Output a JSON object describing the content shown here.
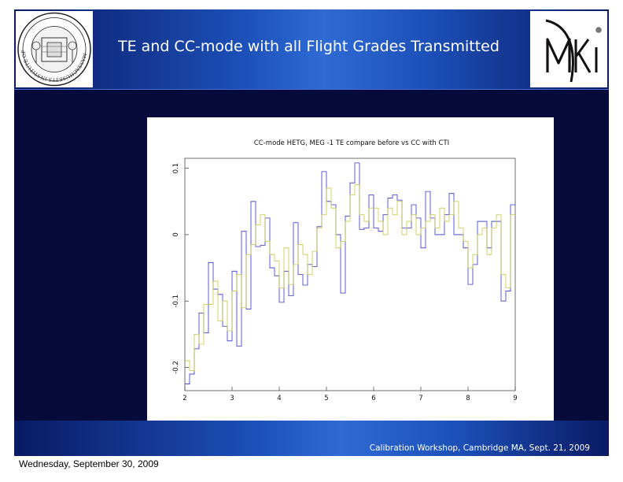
{
  "slide": {
    "title": "TE and CC-mode with all Flight Grades Transmitted",
    "footer": "Calibration Workshop, Cambridge MA, Sept. 21, 2009",
    "seal_text": "MASSACHUSETTS INSTITUTE OF TECHNOLOGY"
  },
  "page_footer_date": "Wednesday, September 30, 2009",
  "colors": {
    "slide_bg": "#070b3c",
    "header_mid": "#2e6bd3",
    "series_blue": "#3333cc",
    "series_yellow": "#c8c845"
  },
  "chart_data": {
    "type": "line",
    "step": true,
    "title": "CC-mode HETG, MEG -1 TE compare before vs CC with CTI",
    "xlabel": "",
    "ylabel": "",
    "xlim": [
      2,
      9
    ],
    "ylim": [
      -0.235,
      0.115
    ],
    "xticks": [
      2,
      3,
      4,
      5,
      6,
      7,
      8,
      9
    ],
    "xtick_labels": [
      "2",
      "3",
      "4",
      "5",
      "6",
      "7",
      "8",
      "9"
    ],
    "yticks": [
      -0.2,
      -0.1,
      0,
      0.1
    ],
    "ytick_labels": [
      "-0.2",
      "-0.1",
      "0",
      "0.1"
    ],
    "grid": false,
    "series": [
      {
        "x": [
          2.0,
          2.1,
          2.2,
          2.3,
          2.4,
          2.5,
          2.6,
          2.7,
          2.8,
          2.9,
          3.0,
          3.1,
          3.2,
          3.3,
          3.4,
          3.5,
          3.6,
          3.7,
          3.8,
          3.9,
          4.0,
          4.1,
          4.2,
          4.3,
          4.4,
          4.5,
          4.6,
          4.7,
          4.8,
          4.9,
          5.0,
          5.1,
          5.2,
          5.3,
          5.4,
          5.5,
          5.6,
          5.7,
          5.8,
          5.9,
          6.0,
          6.1,
          6.2,
          6.3,
          6.4,
          6.5,
          6.6,
          6.7,
          6.8,
          6.9,
          7.0,
          7.1,
          7.2,
          7.3,
          7.4,
          7.5,
          7.6,
          7.7,
          7.8,
          7.9,
          8.0,
          8.1,
          8.2,
          8.3,
          8.4,
          8.5,
          8.6,
          8.7,
          8.8,
          8.9
        ],
        "values": [
          -0.225,
          -0.21,
          -0.172,
          -0.118,
          -0.148,
          -0.042,
          -0.082,
          -0.09,
          -0.138,
          -0.16,
          -0.055,
          -0.168,
          0.005,
          -0.112,
          0.05,
          -0.018,
          -0.016,
          0.025,
          -0.05,
          -0.062,
          -0.102,
          -0.055,
          -0.092,
          0.018,
          -0.06,
          -0.076,
          -0.045,
          -0.048,
          0.012,
          0.095,
          0.05,
          0.045,
          0.0,
          -0.088,
          0.028,
          0.078,
          0.108,
          0.008,
          0.01,
          0.06,
          0.01,
          0.005,
          0.03,
          0.055,
          0.06,
          0.052,
          0.01,
          0.01,
          0.045,
          0.025,
          -0.02,
          0.065,
          0.025,
          0.0,
          0.0,
          0.03,
          0.062,
          0.0,
          0.0,
          -0.02,
          -0.075,
          -0.045,
          0.02,
          0.02,
          -0.02,
          0.02,
          0.02,
          -0.1,
          -0.085,
          0.045
        ]
      },
      {
        "x": [
          2.0,
          2.1,
          2.2,
          2.3,
          2.4,
          2.5,
          2.6,
          2.7,
          2.8,
          2.9,
          3.0,
          3.1,
          3.2,
          3.3,
          3.4,
          3.5,
          3.6,
          3.7,
          3.8,
          3.9,
          4.0,
          4.1,
          4.2,
          4.3,
          4.4,
          4.5,
          4.6,
          4.7,
          4.8,
          4.9,
          5.0,
          5.1,
          5.2,
          5.3,
          5.4,
          5.5,
          5.6,
          5.7,
          5.8,
          5.9,
          6.0,
          6.1,
          6.2,
          6.3,
          6.4,
          6.5,
          6.6,
          6.7,
          6.8,
          6.9,
          7.0,
          7.1,
          7.2,
          7.3,
          7.4,
          7.5,
          7.6,
          7.7,
          7.8,
          7.9,
          8.0,
          8.1,
          8.2,
          8.3,
          8.4,
          8.5,
          8.6,
          8.7,
          8.8,
          8.9
        ],
        "values": [
          -0.19,
          -0.205,
          -0.15,
          -0.165,
          -0.105,
          -0.105,
          -0.07,
          -0.13,
          -0.1,
          -0.145,
          -0.085,
          -0.06,
          -0.11,
          -0.03,
          -0.015,
          0.015,
          0.03,
          -0.01,
          -0.03,
          -0.04,
          -0.08,
          -0.02,
          -0.075,
          -0.045,
          -0.015,
          -0.03,
          -0.06,
          -0.025,
          0.01,
          0.03,
          0.07,
          0.04,
          -0.02,
          -0.01,
          0.02,
          0.06,
          0.075,
          0.03,
          0.02,
          0.04,
          0.04,
          0.02,
          0.0,
          0.04,
          0.03,
          0.05,
          0.0,
          0.02,
          0.03,
          0.0,
          0.01,
          0.02,
          0.03,
          0.01,
          0.04,
          0.02,
          0.03,
          0.05,
          0.01,
          -0.01,
          -0.05,
          -0.03,
          0.0,
          0.01,
          -0.03,
          0.01,
          0.03,
          -0.06,
          -0.08,
          0.03
        ]
      }
    ]
  }
}
